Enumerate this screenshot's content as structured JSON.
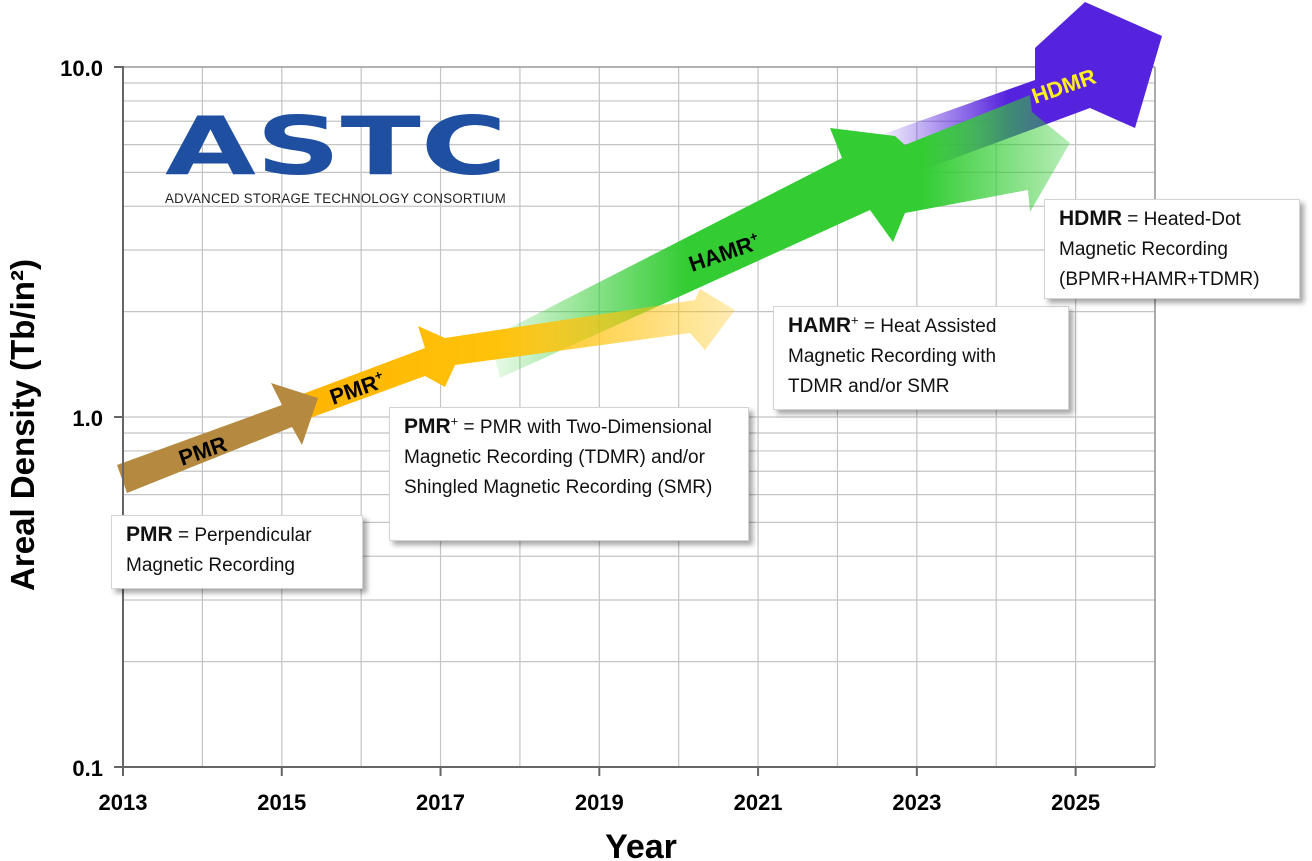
{
  "chart_data": {
    "type": "line",
    "xlabel": "Year",
    "ylabel": "Areal Density (Tb/in²)",
    "x_ticks": [
      "2013",
      "2015",
      "2017",
      "2019",
      "2021",
      "2023",
      "2025"
    ],
    "y_ticks": [
      "0.1",
      "1.0",
      "10.0"
    ],
    "xlim": [
      2013,
      2026
    ],
    "ylim": [
      0.1,
      10
    ],
    "y_scale": "log",
    "grid": true,
    "series": [
      {
        "name": "PMR",
        "color": "#b58a40",
        "x": [
          2013,
          2015.4
        ],
        "y": [
          0.68,
          0.95
        ]
      },
      {
        "name": "PMR+",
        "color": "#ffb800",
        "x": [
          2015.4,
          2017,
          2020.6
        ],
        "y": [
          0.95,
          1.45,
          2.0
        ]
      },
      {
        "name": "HAMR+",
        "color": "#33cc33",
        "x": [
          2017.3,
          2020,
          2022,
          2024.6
        ],
        "y": [
          1.55,
          2.5,
          3.9,
          6.2
        ]
      },
      {
        "name": "HDMR",
        "color": "#5522dd",
        "x": [
          2022.5,
          2024,
          2026
        ],
        "y": [
          5.8,
          8.0,
          12.0
        ]
      }
    ],
    "arrow_labels": {
      "pmr": "PMR",
      "pmr_plus": "PMR",
      "hamr_plus": "HAMR",
      "hdmr": "HDMR",
      "plus": "+"
    }
  },
  "logo": {
    "name": "ASTC",
    "subtitle": "ADVANCED STORAGE TECHNOLOGY CONSORTIUM",
    "color": "#1f4fa0"
  },
  "definitions": [
    {
      "term": "PMR",
      "sup": "",
      "text": " = Perpendicular Magnetic Recording"
    },
    {
      "term": "PMR",
      "sup": "+",
      "text": " = PMR with Two-Dimensional Magnetic Recording (TDMR) and/or Shingled Magnetic Recording (SMR)"
    },
    {
      "term": "HAMR",
      "sup": "+",
      "text": " = Heat Assisted Magnetic Recording with TDMR and/or SMR"
    },
    {
      "term": "HDMR",
      "sup": "",
      "text": " = Heated-Dot Magnetic Recording (BPMR+HAMR+TDMR)"
    }
  ]
}
